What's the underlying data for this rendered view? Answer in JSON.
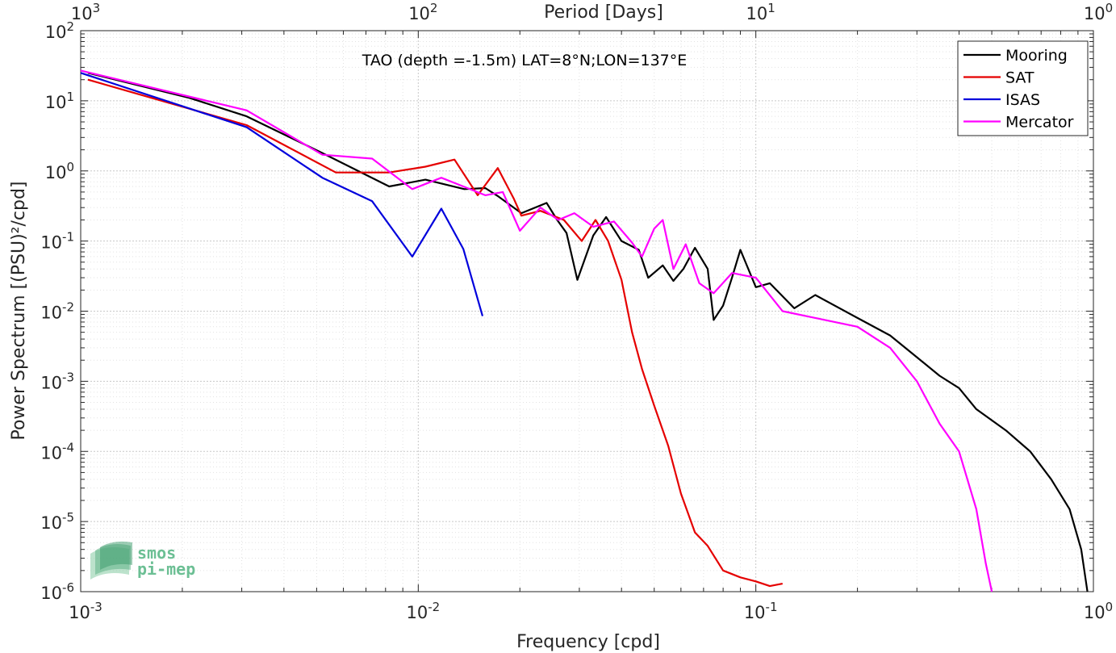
{
  "chart_data": {
    "type": "line",
    "title": "TAO (depth =-1.5m) LAT=8°N;LON=137°E",
    "xlabel": "Frequency [cpd]",
    "ylabel": "Power Spectrum [(PSU)²/cpd]",
    "top_axis_label": "Period [Days]",
    "x_scale": "log",
    "y_scale": "log",
    "xlim": [
      0.001,
      1
    ],
    "ylim": [
      1e-06,
      100
    ],
    "x_tick_labels": [
      {
        "base": "10",
        "exp": "-3"
      },
      {
        "base": "10",
        "exp": "-2"
      },
      {
        "base": "10",
        "exp": "-1"
      },
      {
        "base": "10",
        "exp": "0"
      }
    ],
    "top_tick_labels": [
      {
        "base": "10",
        "exp": "3"
      },
      {
        "base": "10",
        "exp": "2"
      },
      {
        "base": "10",
        "exp": "1"
      },
      {
        "base": "10",
        "exp": "0"
      }
    ],
    "y_tick_labels": [
      {
        "base": "10",
        "exp": "2"
      },
      {
        "base": "10",
        "exp": "1"
      },
      {
        "base": "10",
        "exp": "0"
      },
      {
        "base": "10",
        "exp": "-1"
      },
      {
        "base": "10",
        "exp": "-2"
      },
      {
        "base": "10",
        "exp": "-3"
      },
      {
        "base": "10",
        "exp": "-4"
      },
      {
        "base": "10",
        "exp": "-5"
      },
      {
        "base": "10",
        "exp": "-6"
      }
    ],
    "grid": true,
    "legend_position": "top-right",
    "series": [
      {
        "name": "Mooring",
        "color": "#000000",
        "points": [
          [
            0.00105,
            25
          ],
          [
            0.0021,
            11
          ],
          [
            0.0031,
            6
          ],
          [
            0.0052,
            1.8
          ],
          [
            0.0082,
            0.6
          ],
          [
            0.0105,
            0.75
          ],
          [
            0.0137,
            0.55
          ],
          [
            0.0158,
            0.57
          ],
          [
            0.0173,
            0.43
          ],
          [
            0.0202,
            0.25
          ],
          [
            0.024,
            0.35
          ],
          [
            0.0258,
            0.2
          ],
          [
            0.0275,
            0.13
          ],
          [
            0.0296,
            0.028
          ],
          [
            0.033,
            0.12
          ],
          [
            0.036,
            0.22
          ],
          [
            0.04,
            0.1
          ],
          [
            0.045,
            0.075
          ],
          [
            0.048,
            0.03
          ],
          [
            0.053,
            0.045
          ],
          [
            0.057,
            0.027
          ],
          [
            0.061,
            0.04
          ],
          [
            0.066,
            0.08
          ],
          [
            0.072,
            0.04
          ],
          [
            0.075,
            0.0075
          ],
          [
            0.08,
            0.012
          ],
          [
            0.085,
            0.03
          ],
          [
            0.09,
            0.075
          ],
          [
            0.1,
            0.022
          ],
          [
            0.11,
            0.025
          ],
          [
            0.13,
            0.011
          ],
          [
            0.15,
            0.017
          ],
          [
            0.2,
            0.008
          ],
          [
            0.25,
            0.0045
          ],
          [
            0.3,
            0.0022
          ],
          [
            0.35,
            0.0012
          ],
          [
            0.4,
            0.0008
          ],
          [
            0.45,
            0.0004
          ],
          [
            0.55,
            0.0002
          ],
          [
            0.65,
            0.0001
          ],
          [
            0.75,
            4e-05
          ],
          [
            0.85,
            1.5e-05
          ],
          [
            0.92,
            4e-06
          ],
          [
            0.96,
            1e-06
          ]
        ]
      },
      {
        "name": "SAT",
        "color": "#e50000",
        "points": [
          [
            0.00105,
            20
          ],
          [
            0.0031,
            4.5
          ],
          [
            0.0057,
            0.95
          ],
          [
            0.0082,
            0.95
          ],
          [
            0.0105,
            1.15
          ],
          [
            0.0128,
            1.45
          ],
          [
            0.015,
            0.45
          ],
          [
            0.0172,
            1.1
          ],
          [
            0.0192,
            0.4
          ],
          [
            0.0202,
            0.23
          ],
          [
            0.023,
            0.27
          ],
          [
            0.027,
            0.2
          ],
          [
            0.0305,
            0.1
          ],
          [
            0.0335,
            0.2
          ],
          [
            0.0365,
            0.1
          ],
          [
            0.04,
            0.028
          ],
          [
            0.043,
            0.005
          ],
          [
            0.046,
            0.0015
          ],
          [
            0.05,
            0.00045
          ],
          [
            0.055,
            0.00012
          ],
          [
            0.06,
            2.5e-05
          ],
          [
            0.066,
            7e-06
          ],
          [
            0.072,
            4.5e-06
          ],
          [
            0.08,
            2e-06
          ],
          [
            0.09,
            1.6e-06
          ],
          [
            0.1,
            1.4e-06
          ],
          [
            0.11,
            1.2e-06
          ],
          [
            0.12,
            1.3e-06
          ]
        ]
      },
      {
        "name": "ISAS",
        "color": "#0000dc",
        "points": [
          [
            0.001,
            25
          ],
          [
            0.0031,
            4.2
          ],
          [
            0.0052,
            0.8
          ],
          [
            0.0073,
            0.37
          ],
          [
            0.0096,
            0.06
          ],
          [
            0.0117,
            0.29
          ],
          [
            0.0136,
            0.077
          ],
          [
            0.0155,
            0.0085
          ]
        ]
      },
      {
        "name": "Mercator",
        "color": "#ff00ff",
        "points": [
          [
            0.001,
            27
          ],
          [
            0.0031,
            7.3
          ],
          [
            0.0052,
            1.7
          ],
          [
            0.0073,
            1.5
          ],
          [
            0.0096,
            0.55
          ],
          [
            0.0117,
            0.8
          ],
          [
            0.0136,
            0.6
          ],
          [
            0.0158,
            0.45
          ],
          [
            0.0178,
            0.5
          ],
          [
            0.02,
            0.14
          ],
          [
            0.023,
            0.3
          ],
          [
            0.026,
            0.2
          ],
          [
            0.029,
            0.25
          ],
          [
            0.033,
            0.16
          ],
          [
            0.038,
            0.19
          ],
          [
            0.043,
            0.095
          ],
          [
            0.046,
            0.06
          ],
          [
            0.05,
            0.15
          ],
          [
            0.053,
            0.2
          ],
          [
            0.057,
            0.04
          ],
          [
            0.062,
            0.09
          ],
          [
            0.068,
            0.025
          ],
          [
            0.075,
            0.018
          ],
          [
            0.085,
            0.035
          ],
          [
            0.1,
            0.03
          ],
          [
            0.12,
            0.01
          ],
          [
            0.15,
            0.008
          ],
          [
            0.2,
            0.006
          ],
          [
            0.25,
            0.003
          ],
          [
            0.3,
            0.001
          ],
          [
            0.35,
            0.00025
          ],
          [
            0.4,
            0.0001
          ],
          [
            0.45,
            1.5e-05
          ],
          [
            0.48,
            2.5e-06
          ],
          [
            0.5,
            1e-06
          ]
        ]
      }
    ],
    "legend": [
      "Mooring",
      "SAT",
      "ISAS",
      "Mercator"
    ]
  },
  "watermark": {
    "line1": "smos",
    "line2": "pi-mep",
    "color": "#3a9a6a"
  }
}
